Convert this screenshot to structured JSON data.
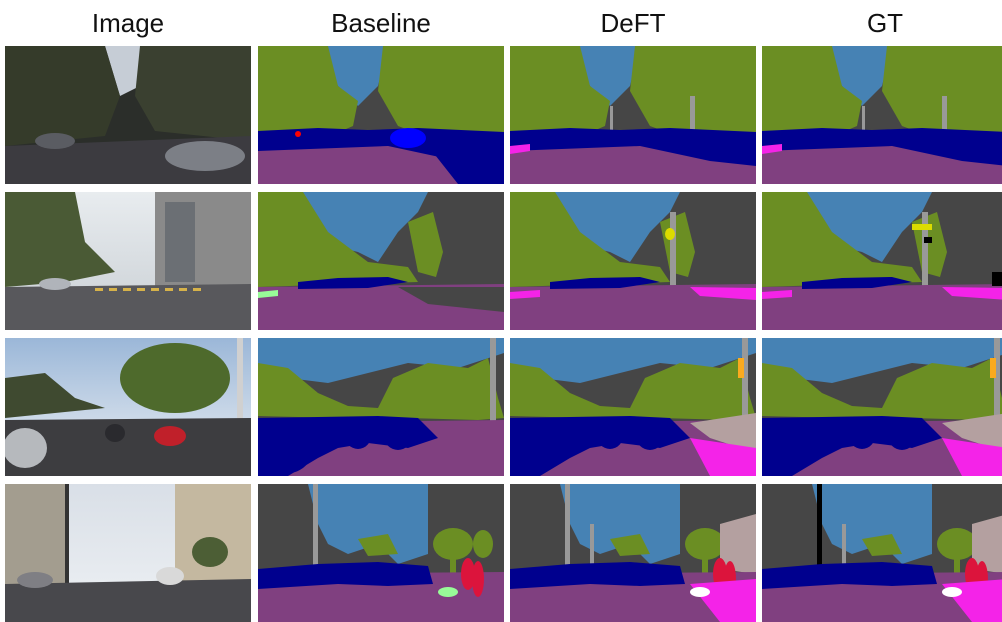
{
  "headers": [
    "Image",
    "Baseline",
    "DeFT",
    "GT"
  ],
  "colors": {
    "sky": "#4682b4",
    "vegetation": "#6b8e23",
    "building": "#464646",
    "road": "#804080",
    "sidewalk": "#f423e8",
    "car": "#00008e",
    "pole": "#999999",
    "traffic_sign": "#dcdc00",
    "traffic_light": "#faaa1e",
    "person": "#dc143c",
    "terrain": "#98fb98",
    "wall": "#b4a0a0"
  }
}
